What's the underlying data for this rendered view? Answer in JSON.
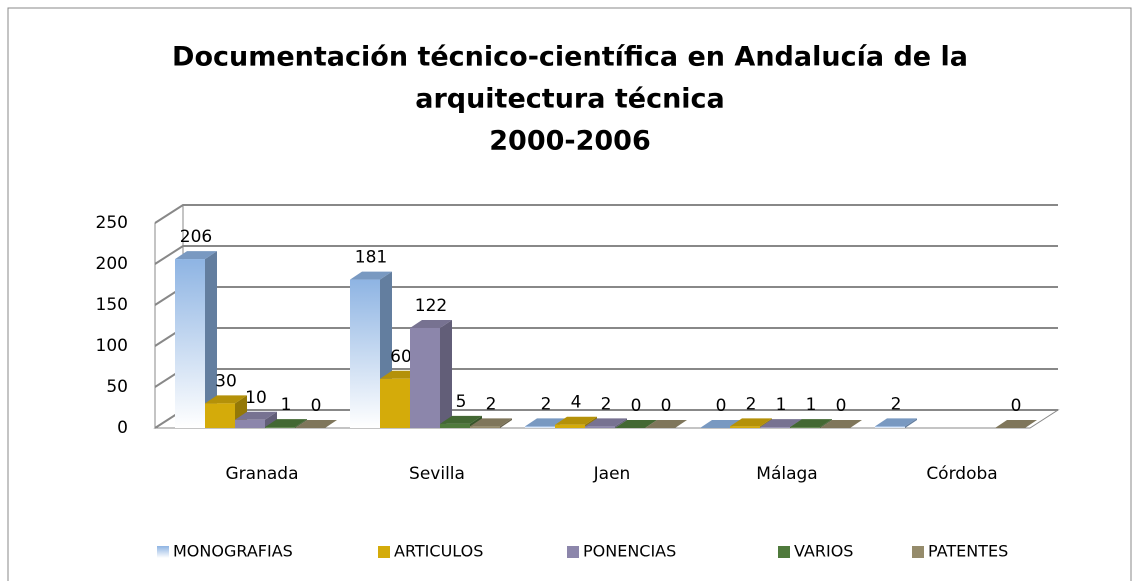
{
  "chart_data": {
    "type": "bar3d",
    "title": [
      "Documentación técnico-científica en Andalucía de la",
      "arquitectura técnica",
      "2000-2006"
    ],
    "categories": [
      "Granada",
      "Sevilla",
      "Jaen",
      "Málaga",
      "Córdoba"
    ],
    "series": [
      {
        "name": "MONOGRAFIAS",
        "color": "#8eb4e3",
        "values": [
          206,
          181,
          2,
          0,
          2
        ]
      },
      {
        "name": "ARTICULOS",
        "color": "#d4ab0a",
        "values": [
          30,
          60,
          4,
          2,
          null
        ]
      },
      {
        "name": "PONENCIAS",
        "color": "#8c86ab",
        "values": [
          10,
          122,
          2,
          1,
          null
        ]
      },
      {
        "name": "VARIOS",
        "color": "#4f7a3c",
        "values": [
          1,
          5,
          0,
          1,
          null
        ]
      },
      {
        "name": "PATENTES",
        "color": "#958b6b",
        "values": [
          0,
          2,
          0,
          0,
          0
        ]
      }
    ],
    "ylim": [
      0,
      250
    ],
    "yticks": [
      0,
      50,
      100,
      150,
      200,
      250
    ],
    "grid": true,
    "legend": "bottom"
  }
}
